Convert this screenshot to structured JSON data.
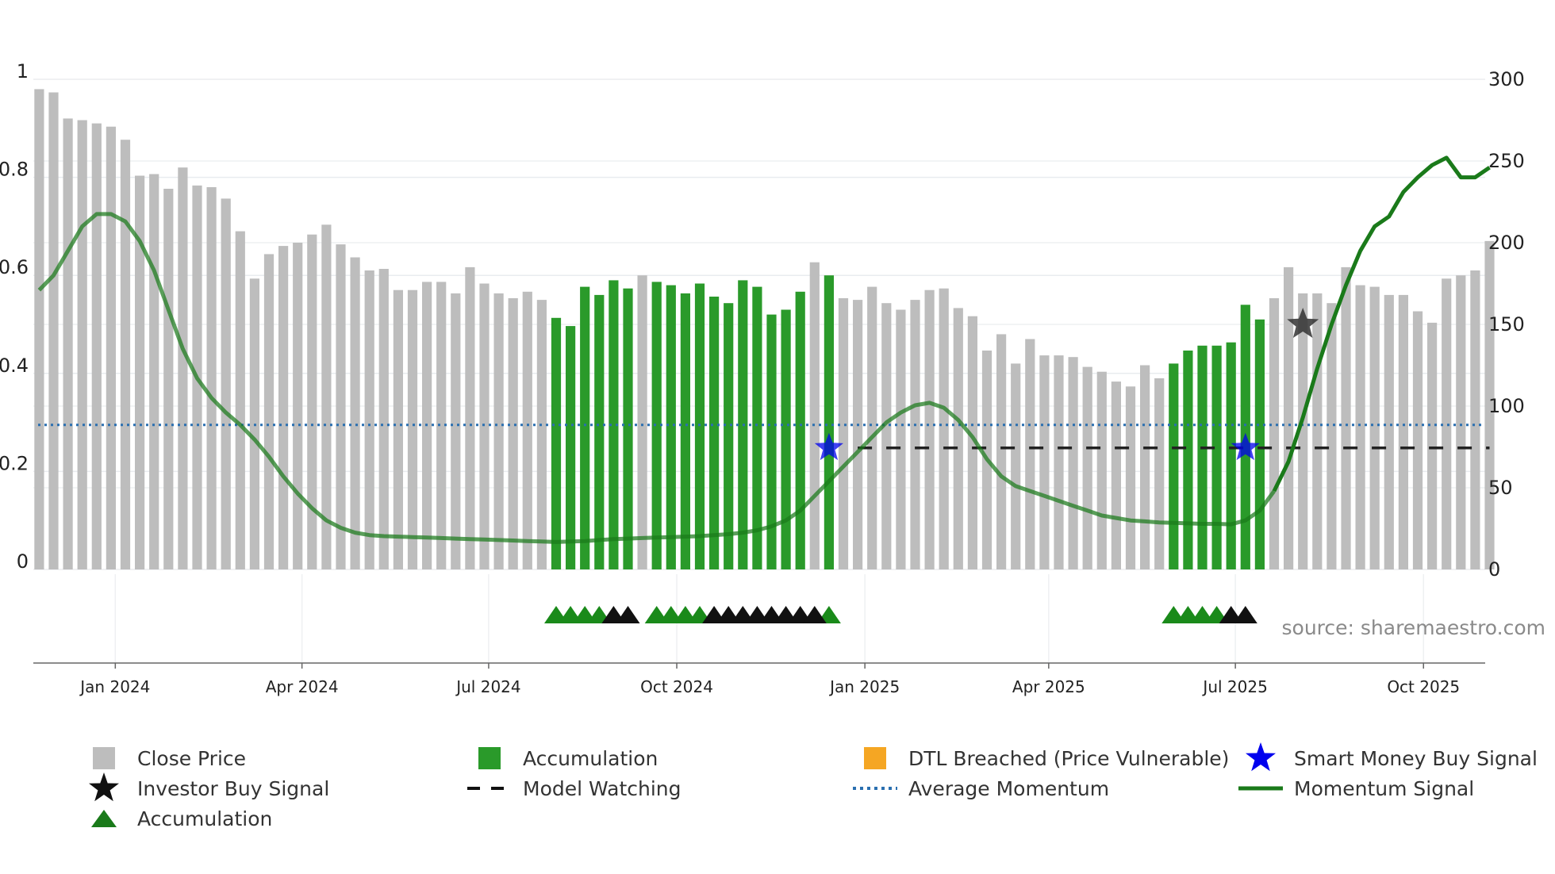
{
  "chart_data": {
    "type": "bar",
    "title": "",
    "source": "source: sharemaestro.com",
    "left_axis": {
      "ylim": [
        0,
        1
      ],
      "ticks": [
        "0",
        "0.2",
        "0.4",
        "0.6",
        "0.8",
        "1"
      ],
      "tick_values": [
        0,
        0.2,
        0.4,
        0.6,
        0.8,
        1
      ]
    },
    "right_axis": {
      "ylim": [
        0,
        300
      ],
      "ticks": [
        "0",
        "50",
        "100",
        "150",
        "200",
        "250",
        "300"
      ],
      "tick_values": [
        0,
        50,
        100,
        150,
        200,
        250,
        300
      ]
    },
    "x_axis": {
      "labels": [
        "Jan 2024",
        "Apr 2024",
        "Jul 2024",
        "Oct 2024",
        "Jan 2025",
        "Apr 2025",
        "Jul 2025",
        "Oct 2025"
      ],
      "label_week_index": [
        5.3,
        18.3,
        31.3,
        44.4,
        57.5,
        70.3,
        83.3,
        96.4
      ]
    },
    "close_price": {
      "name": "Close Price",
      "color": "#bdbdbd",
      "values": [
        294,
        292,
        276,
        275,
        273,
        271,
        263,
        241,
        242,
        233,
        246,
        235,
        234,
        227,
        207,
        178,
        193,
        198,
        200,
        205,
        211,
        199,
        191,
        183,
        184,
        171,
        171,
        176,
        176,
        169,
        185,
        175,
        169,
        166,
        170,
        165,
        154,
        149,
        173,
        168,
        177,
        172,
        180,
        176,
        174,
        169,
        175,
        167,
        163,
        177,
        173,
        156,
        159,
        170,
        188,
        180,
        166,
        165,
        173,
        163,
        159,
        165,
        171,
        172,
        160,
        155,
        134,
        144,
        126,
        141,
        131,
        131,
        130,
        124,
        121,
        115,
        112,
        125,
        117,
        126,
        134,
        137,
        137,
        139,
        162,
        153,
        166,
        185,
        169,
        169,
        163,
        185,
        174,
        173,
        168,
        168,
        158,
        151,
        178,
        180,
        183,
        201
      ]
    },
    "accumulation_weeks": [
      36,
      37,
      38,
      39,
      40,
      41,
      43,
      44,
      45,
      46,
      47,
      48,
      49,
      50,
      51,
      52,
      53,
      55,
      79,
      80,
      81,
      82,
      83,
      84,
      85
    ],
    "accumulation_color": "#2a9a2a",
    "momentum": {
      "name": "Momentum Signal",
      "color": "#1a7a1a",
      "values": [
        0.57,
        0.6,
        0.65,
        0.7,
        0.725,
        0.725,
        0.71,
        0.67,
        0.61,
        0.53,
        0.45,
        0.39,
        0.35,
        0.32,
        0.295,
        0.265,
        0.23,
        0.19,
        0.155,
        0.125,
        0.1,
        0.085,
        0.075,
        0.07,
        0.068,
        0.067,
        0.066,
        0.065,
        0.064,
        0.063,
        0.062,
        0.061,
        0.06,
        0.059,
        0.058,
        0.057,
        0.056,
        0.057,
        0.058,
        0.06,
        0.062,
        0.063,
        0.064,
        0.065,
        0.066,
        0.067,
        0.068,
        0.07,
        0.072,
        0.075,
        0.08,
        0.088,
        0.1,
        0.12,
        0.15,
        0.18,
        0.21,
        0.24,
        0.27,
        0.3,
        0.32,
        0.335,
        0.34,
        0.33,
        0.305,
        0.27,
        0.225,
        0.19,
        0.17,
        0.16,
        0.15,
        0.14,
        0.13,
        0.12,
        0.11,
        0.105,
        0.1,
        0.098,
        0.096,
        0.095,
        0.094,
        0.093,
        0.093,
        0.092,
        0.1,
        0.12,
        0.16,
        0.22,
        0.31,
        0.41,
        0.5,
        0.58,
        0.65,
        0.7,
        0.72,
        0.77,
        0.8,
        0.825,
        0.84,
        0.8,
        0.8,
        0.82
      ]
    },
    "average_momentum": {
      "name": "Average Momentum",
      "value": 0.295,
      "color": "#2a6fb0"
    },
    "model_watching": {
      "name": "Model Watching",
      "value": 0.248,
      "from_week": 57,
      "to_week": 101,
      "color": "#222222"
    },
    "smart_money_buy_signal": {
      "name": "Smart Money Buy Signal",
      "weeks": [
        55,
        84
      ],
      "value": 0.248,
      "color": "#0000ee"
    },
    "investor_buy_signal": {
      "name": "Investor Buy Signal",
      "weeks": [
        88
      ],
      "value": 0.5,
      "color": "#333333"
    },
    "accumulation_triangles": {
      "name": "Accumulation",
      "green_weeks": [
        36,
        37,
        38,
        39,
        43,
        44,
        45,
        46,
        55,
        79,
        80,
        81,
        82
      ],
      "black_weeks": [
        40,
        41,
        47,
        48,
        49,
        50,
        51,
        52,
        53,
        54,
        83,
        84
      ]
    }
  },
  "legend": {
    "items": [
      {
        "label": "Close Price",
        "symbol": "square",
        "color": "#bdbdbd"
      },
      {
        "label": "Accumulation",
        "symbol": "square",
        "color": "#2a9a2a"
      },
      {
        "label": "DTL Breached (Price Vulnerable)",
        "symbol": "square",
        "color": "#f5a623"
      },
      {
        "label": "Smart Money Buy Signal",
        "symbol": "star",
        "color": "#0000ee"
      },
      {
        "label": "Investor Buy Signal",
        "symbol": "star",
        "color": "#111111"
      },
      {
        "label": "Model Watching",
        "symbol": "dash",
        "color": "#111111"
      },
      {
        "label": "Average Momentum",
        "symbol": "dot",
        "color": "#2a6fb0"
      },
      {
        "label": "Momentum Signal",
        "symbol": "line",
        "color": "#1a7a1a"
      },
      {
        "label": "Accumulation",
        "symbol": "triangle",
        "color": "#1a7a1a"
      }
    ]
  }
}
